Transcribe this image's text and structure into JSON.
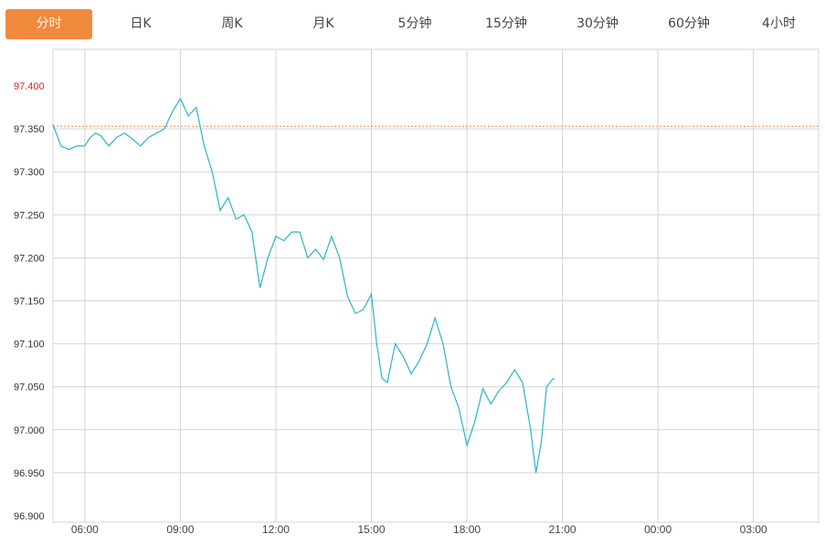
{
  "tabs": [
    {
      "label": "分时",
      "active": true
    },
    {
      "label": "日K",
      "active": false
    },
    {
      "label": "周K",
      "active": false
    },
    {
      "label": "月K",
      "active": false
    },
    {
      "label": "5分钟",
      "active": false
    },
    {
      "label": "15分钟",
      "active": false
    },
    {
      "label": "30分钟",
      "active": false
    },
    {
      "label": "60分钟",
      "active": false
    },
    {
      "label": "4小时",
      "active": false
    }
  ],
  "colors": {
    "accent": "#f0893c",
    "line": "#2ab5c8",
    "grid": "#d4d4d4",
    "reference_line": "#f0893c",
    "tick_above_reference": "#e02020",
    "tick_default": "#333333"
  },
  "chart_data": {
    "type": "line",
    "title": "",
    "xlabel": "",
    "ylabel": "",
    "ylim": [
      96.9,
      97.4
    ],
    "y_ticks": [
      "97.400",
      "97.350",
      "97.300",
      "97.250",
      "97.200",
      "97.150",
      "97.100",
      "97.050",
      "97.000",
      "96.950",
      "96.900"
    ],
    "x_ticks": [
      "06:00",
      "09:00",
      "12:00",
      "15:00",
      "18:00",
      "21:00",
      "00:00",
      "03:00"
    ],
    "x_range": [
      "05:00",
      "05:00 (+1 day)"
    ],
    "reference_value": 97.353,
    "grid": true,
    "series": [
      {
        "x": [
          "05:00",
          "05:15",
          "05:30",
          "05:45",
          "06:00",
          "06:10",
          "06:20",
          "06:30",
          "06:45",
          "07:00",
          "07:15",
          "07:30",
          "07:45",
          "08:00",
          "08:15",
          "08:30",
          "08:45",
          "09:00",
          "09:15",
          "09:30",
          "09:45",
          "10:00",
          "10:15",
          "10:30",
          "10:45",
          "11:00",
          "11:15",
          "11:30",
          "11:45",
          "12:00",
          "12:15",
          "12:30",
          "12:45",
          "13:00",
          "13:15",
          "13:30",
          "13:45",
          "14:00",
          "14:15",
          "14:30",
          "14:45",
          "15:00",
          "15:10",
          "15:20",
          "15:30",
          "15:45",
          "16:00",
          "16:15",
          "16:30",
          "16:45",
          "17:00",
          "17:15",
          "17:30",
          "17:45",
          "18:00",
          "18:15",
          "18:30",
          "18:45",
          "19:00",
          "19:15",
          "19:30",
          "19:45",
          "20:00",
          "20:10",
          "20:20",
          "20:30",
          "20:40",
          "20:45"
        ],
        "values": [
          97.355,
          97.33,
          97.326,
          97.33,
          97.33,
          97.34,
          97.345,
          97.342,
          97.33,
          97.34,
          97.345,
          97.338,
          97.33,
          97.34,
          97.345,
          97.35,
          97.37,
          97.385,
          97.365,
          97.375,
          97.33,
          97.3,
          97.255,
          97.27,
          97.245,
          97.25,
          97.23,
          97.165,
          97.2,
          97.225,
          97.22,
          97.23,
          97.23,
          97.2,
          97.21,
          97.198,
          97.225,
          97.2,
          97.155,
          97.135,
          97.14,
          97.158,
          97.1,
          97.06,
          97.055,
          97.1,
          97.085,
          97.065,
          97.08,
          97.1,
          97.13,
          97.1,
          97.05,
          97.025,
          96.982,
          97.01,
          97.048,
          97.03,
          97.045,
          97.055,
          97.07,
          97.055,
          97.0,
          96.95,
          96.985,
          97.05,
          97.058,
          97.06
        ]
      }
    ]
  }
}
